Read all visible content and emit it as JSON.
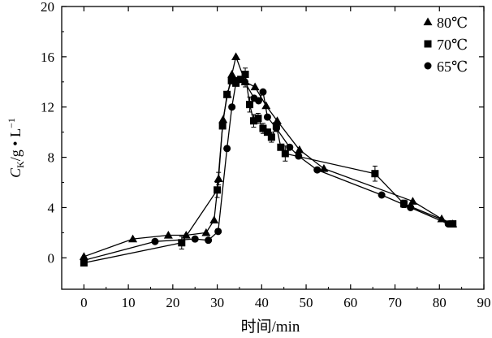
{
  "chart_data": {
    "type": "line",
    "xlabel": "时间/min",
    "ylabel": {
      "main": "C",
      "sub": "K",
      "rest": "/g • L",
      "sup": "−1"
    },
    "xlim": [
      -5,
      90
    ],
    "ylim": [
      -2.5,
      20
    ],
    "xticks": [
      0,
      10,
      20,
      30,
      40,
      50,
      60,
      70,
      80,
      90
    ],
    "yticks": [
      0,
      4,
      8,
      12,
      16,
      20
    ],
    "legend_position": "top-right",
    "series": [
      {
        "name": "80℃",
        "marker": "triangle",
        "points": [
          [
            0,
            0.1
          ],
          [
            11,
            1.5
          ],
          [
            19,
            1.8
          ],
          [
            23,
            1.8
          ],
          [
            27.5,
            2.0
          ],
          [
            29.3,
            3.0
          ],
          [
            30.3,
            6.3
          ],
          [
            31.3,
            11.0
          ],
          [
            32.3,
            13.0
          ],
          [
            33.3,
            14.6
          ],
          [
            34.2,
            16.0
          ],
          [
            36.3,
            14.0
          ],
          [
            38.5,
            13.6
          ],
          [
            41,
            12.1
          ],
          [
            43.5,
            10.9
          ],
          [
            48.5,
            8.6
          ],
          [
            54,
            7.1
          ],
          [
            74,
            4.5
          ],
          [
            80.5,
            3.1
          ],
          [
            83,
            2.7
          ]
        ],
        "errors": [
          [
            30.3,
            6.3,
            0.5
          ],
          [
            36.3,
            14.0,
            0.4
          ]
        ]
      },
      {
        "name": "70℃",
        "marker": "square",
        "points": [
          [
            0,
            -0.4
          ],
          [
            22,
            1.2
          ],
          [
            30,
            5.4
          ],
          [
            31.2,
            10.5
          ],
          [
            32.2,
            13.0
          ],
          [
            33.2,
            14.1
          ],
          [
            34.2,
            13.9
          ],
          [
            35.3,
            14.2
          ],
          [
            36.3,
            14.6
          ],
          [
            37.3,
            12.2
          ],
          [
            38.2,
            10.9
          ],
          [
            39.2,
            11.1
          ],
          [
            40.3,
            10.3
          ],
          [
            41.3,
            10.0
          ],
          [
            42.2,
            9.6
          ],
          [
            43.3,
            10.5
          ],
          [
            44.3,
            8.8
          ],
          [
            45.3,
            8.3
          ],
          [
            65.5,
            6.7
          ],
          [
            72,
            4.3
          ],
          [
            83,
            2.7
          ]
        ],
        "errors": [
          [
            22,
            1.2,
            0.5
          ],
          [
            30,
            5.4,
            0.6
          ],
          [
            36.3,
            14.6,
            0.5
          ],
          [
            37.3,
            12.2,
            0.6
          ],
          [
            38.2,
            10.9,
            0.5
          ],
          [
            39.2,
            11.1,
            0.4
          ],
          [
            40.3,
            10.3,
            0.4
          ],
          [
            42.2,
            9.6,
            0.4
          ],
          [
            45.3,
            8.3,
            0.6
          ],
          [
            65.5,
            6.7,
            0.6
          ],
          [
            72,
            4.3,
            0.3
          ]
        ]
      },
      {
        "name": "65℃",
        "marker": "circle",
        "points": [
          [
            0,
            -0.2
          ],
          [
            16,
            1.3
          ],
          [
            25,
            1.5
          ],
          [
            28,
            1.4
          ],
          [
            30.2,
            2.1
          ],
          [
            32.2,
            8.7
          ],
          [
            33.3,
            12.0
          ],
          [
            34.3,
            14.1
          ],
          [
            36.2,
            14.0
          ],
          [
            38.3,
            12.7
          ],
          [
            39.3,
            12.5
          ],
          [
            40.3,
            13.2
          ],
          [
            41.3,
            11.2
          ],
          [
            43.3,
            10.3
          ],
          [
            46.3,
            8.8
          ],
          [
            48.3,
            8.1
          ],
          [
            52.5,
            7.0
          ],
          [
            67,
            5.0
          ],
          [
            73.5,
            4.0
          ],
          [
            82,
            2.7
          ]
        ],
        "errors": []
      }
    ]
  }
}
